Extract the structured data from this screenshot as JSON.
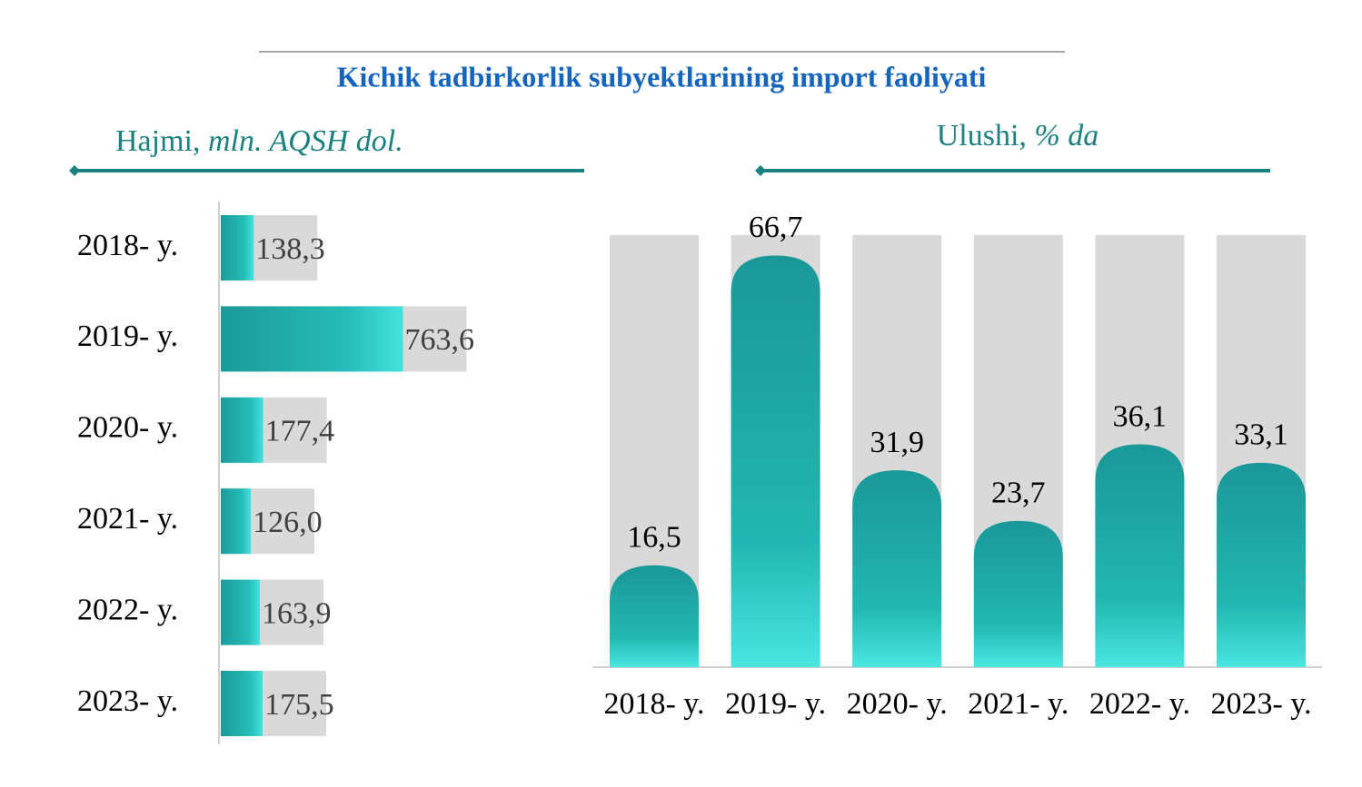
{
  "title": "Kichik tadbirkorlik subyektlarining import faoliyati",
  "chart_data": [
    {
      "type": "hbar",
      "label": "Hajmi,",
      "unit": "mln. AQSH dol.",
      "categories": [
        "2018- y.",
        "2019- y.",
        "2020- y.",
        "2021- y.",
        "2022- y.",
        "2023- y."
      ],
      "values": [
        138.3,
        763.6,
        177.4,
        126.0,
        163.9,
        175.5
      ],
      "value_labels": [
        "138,3",
        "763,6",
        "177,4",
        "126,0",
        "163,9",
        "175,5"
      ],
      "xlim": [
        0,
        800
      ],
      "color": "#1a9a9a"
    },
    {
      "type": "bar",
      "label": "Ulushi,",
      "unit": "% da",
      "categories": [
        "2018- y.",
        "2019- y.",
        "2020- y.",
        "2021- y.",
        "2022- y.",
        "2023- y."
      ],
      "values": [
        16.5,
        66.7,
        31.9,
        23.7,
        36.1,
        33.1
      ],
      "value_labels": [
        "16,5",
        "66,7",
        "31,9",
        "23,7",
        "36,1",
        "33,1"
      ],
      "ylim": [
        0,
        70
      ],
      "color": "#1a9a9a"
    }
  ]
}
